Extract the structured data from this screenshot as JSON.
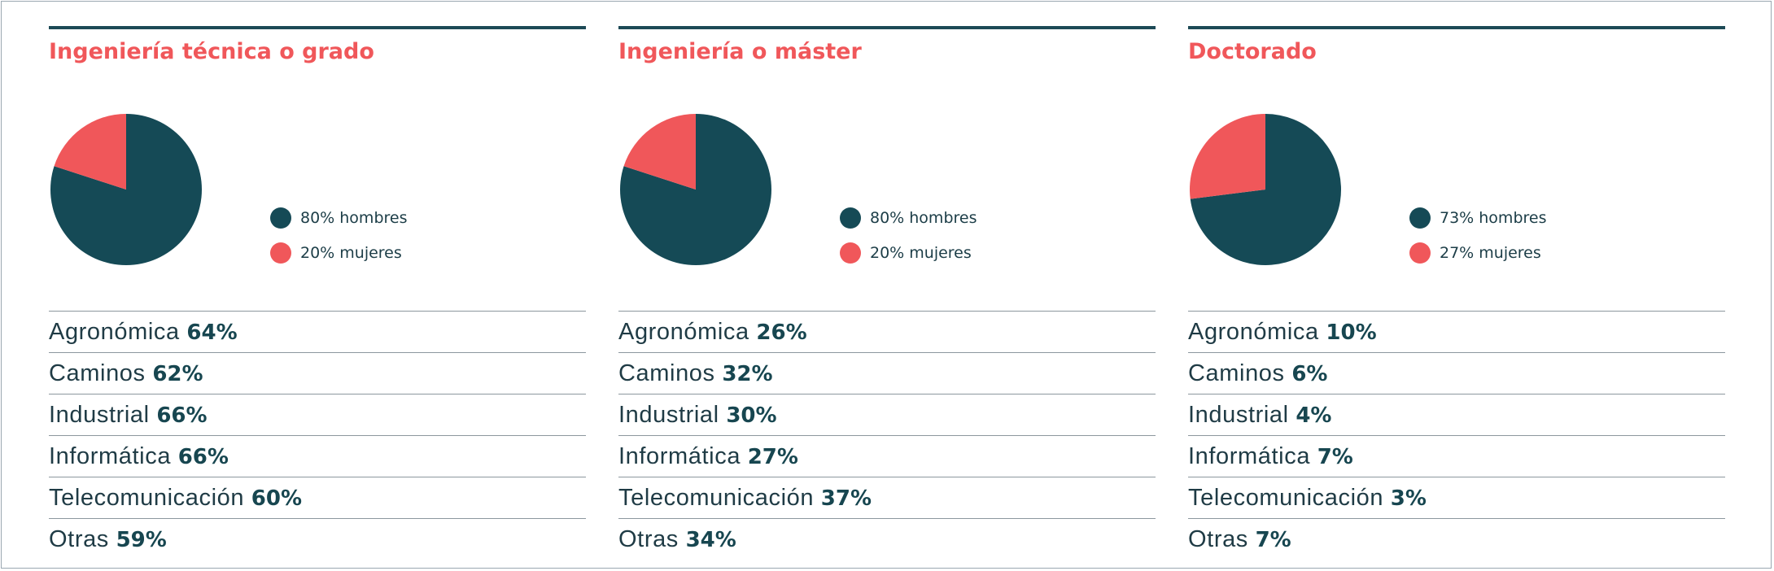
{
  "colors": {
    "hombres": "#154a56",
    "mujeres": "#f0575a",
    "title": "#f0575a",
    "rule": "#1d4a56"
  },
  "chart_data": [
    {
      "type": "pie",
      "title": "Ingeniería técnica o grado",
      "slices": [
        {
          "name": "hombres",
          "value": 80,
          "label": "80% hombres"
        },
        {
          "name": "mujeres",
          "value": 20,
          "label": "20% mujeres"
        }
      ],
      "rows": [
        {
          "name": "Agronómica",
          "value": "64%"
        },
        {
          "name": "Caminos",
          "value": "62%"
        },
        {
          "name": "Industrial",
          "value": "66%"
        },
        {
          "name": "Informática",
          "value": "66%"
        },
        {
          "name": "Telecomunicación",
          "value": "60%"
        },
        {
          "name": "Otras",
          "value": "59%"
        }
      ]
    },
    {
      "type": "pie",
      "title": "Ingeniería o máster",
      "slices": [
        {
          "name": "hombres",
          "value": 80,
          "label": "80% hombres"
        },
        {
          "name": "mujeres",
          "value": 20,
          "label": "20% mujeres"
        }
      ],
      "rows": [
        {
          "name": "Agronómica",
          "value": "26%"
        },
        {
          "name": "Caminos",
          "value": "32%"
        },
        {
          "name": "Industrial",
          "value": "30%"
        },
        {
          "name": "Informática",
          "value": "27%"
        },
        {
          "name": "Telecomunicación",
          "value": "37%"
        },
        {
          "name": "Otras",
          "value": "34%"
        }
      ]
    },
    {
      "type": "pie",
      "title": "Doctorado",
      "slices": [
        {
          "name": "hombres",
          "value": 73,
          "label": "73% hombres"
        },
        {
          "name": "mujeres",
          "value": 27,
          "label": "27% mujeres"
        }
      ],
      "rows": [
        {
          "name": "Agronómica",
          "value": "10%"
        },
        {
          "name": "Caminos",
          "value": "6%"
        },
        {
          "name": "Industrial",
          "value": "4%"
        },
        {
          "name": "Informática",
          "value": "7%"
        },
        {
          "name": "Telecomunicación",
          "value": "3%"
        },
        {
          "name": "Otras",
          "value": "7%"
        }
      ]
    }
  ]
}
